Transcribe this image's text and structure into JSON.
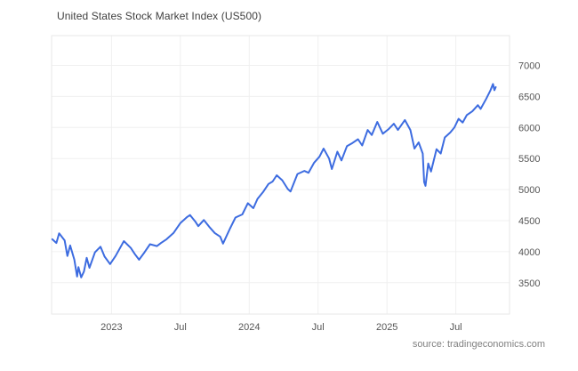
{
  "header": {
    "title": "United States Stock Market Index (US500)"
  },
  "footer": {
    "source": "source: tradingeconomics.com"
  },
  "chart_data": {
    "type": "line",
    "title": "United States Stock Market Index (US500)",
    "xlabel": "",
    "ylabel": "",
    "legend": "none",
    "grid": "on",
    "y_axis_side": "right",
    "line_color": "#3d6ce0",
    "grid_color": "#f0f0f0",
    "border_color": "#e7e7e7",
    "tick_color": "#555555",
    "title_color": "#3f3f3f",
    "source_color": "#808080",
    "xlim": [
      2022.565,
      2025.89
    ],
    "ylim": [
      2995,
      7480
    ],
    "yticks": [
      3500,
      4000,
      4500,
      5000,
      5500,
      6000,
      6500,
      7000
    ],
    "xticks": [
      {
        "v": 2023.0,
        "label": "2023"
      },
      {
        "v": 2023.5,
        "label": "Jul"
      },
      {
        "v": 2024.0,
        "label": "2024"
      },
      {
        "v": 2024.5,
        "label": "Jul"
      },
      {
        "v": 2025.0,
        "label": "2025"
      },
      {
        "v": 2025.5,
        "label": "Jul"
      }
    ],
    "series": [
      {
        "name": "US500",
        "points": [
          [
            2022.57,
            4200
          ],
          [
            2022.6,
            4140
          ],
          [
            2022.62,
            4295
          ],
          [
            2022.66,
            4180
          ],
          [
            2022.68,
            3930
          ],
          [
            2022.7,
            4100
          ],
          [
            2022.73,
            3870
          ],
          [
            2022.75,
            3600
          ],
          [
            2022.76,
            3750
          ],
          [
            2022.78,
            3585
          ],
          [
            2022.8,
            3680
          ],
          [
            2022.82,
            3900
          ],
          [
            2022.84,
            3740
          ],
          [
            2022.88,
            3990
          ],
          [
            2022.92,
            4080
          ],
          [
            2022.95,
            3920
          ],
          [
            2022.99,
            3800
          ],
          [
            2023.03,
            3930
          ],
          [
            2023.09,
            4170
          ],
          [
            2023.14,
            4060
          ],
          [
            2023.17,
            3960
          ],
          [
            2023.2,
            3870
          ],
          [
            2023.24,
            3990
          ],
          [
            2023.28,
            4120
          ],
          [
            2023.33,
            4090
          ],
          [
            2023.36,
            4140
          ],
          [
            2023.4,
            4200
          ],
          [
            2023.45,
            4300
          ],
          [
            2023.5,
            4460
          ],
          [
            2023.55,
            4560
          ],
          [
            2023.57,
            4590
          ],
          [
            2023.61,
            4480
          ],
          [
            2023.63,
            4410
          ],
          [
            2023.67,
            4510
          ],
          [
            2023.71,
            4400
          ],
          [
            2023.75,
            4300
          ],
          [
            2023.79,
            4240
          ],
          [
            2023.81,
            4130
          ],
          [
            2023.86,
            4370
          ],
          [
            2023.9,
            4550
          ],
          [
            2023.95,
            4600
          ],
          [
            2023.99,
            4780
          ],
          [
            2024.03,
            4700
          ],
          [
            2024.06,
            4850
          ],
          [
            2024.1,
            4960
          ],
          [
            2024.14,
            5090
          ],
          [
            2024.17,
            5130
          ],
          [
            2024.2,
            5230
          ],
          [
            2024.24,
            5150
          ],
          [
            2024.28,
            5010
          ],
          [
            2024.3,
            4970
          ],
          [
            2024.35,
            5250
          ],
          [
            2024.4,
            5300
          ],
          [
            2024.43,
            5270
          ],
          [
            2024.47,
            5430
          ],
          [
            2024.51,
            5530
          ],
          [
            2024.54,
            5660
          ],
          [
            2024.58,
            5500
          ],
          [
            2024.6,
            5330
          ],
          [
            2024.64,
            5610
          ],
          [
            2024.67,
            5470
          ],
          [
            2024.71,
            5700
          ],
          [
            2024.75,
            5750
          ],
          [
            2024.79,
            5810
          ],
          [
            2024.82,
            5710
          ],
          [
            2024.86,
            5960
          ],
          [
            2024.89,
            5880
          ],
          [
            2024.93,
            6090
          ],
          [
            2024.97,
            5900
          ],
          [
            2025.01,
            5970
          ],
          [
            2025.05,
            6060
          ],
          [
            2025.08,
            5960
          ],
          [
            2025.13,
            6120
          ],
          [
            2025.17,
            5960
          ],
          [
            2025.2,
            5660
          ],
          [
            2025.23,
            5760
          ],
          [
            2025.26,
            5580
          ],
          [
            2025.27,
            5120
          ],
          [
            2025.28,
            5060
          ],
          [
            2025.3,
            5420
          ],
          [
            2025.32,
            5290
          ],
          [
            2025.36,
            5650
          ],
          [
            2025.39,
            5580
          ],
          [
            2025.42,
            5840
          ],
          [
            2025.46,
            5920
          ],
          [
            2025.49,
            6000
          ],
          [
            2025.52,
            6140
          ],
          [
            2025.55,
            6080
          ],
          [
            2025.58,
            6200
          ],
          [
            2025.62,
            6260
          ],
          [
            2025.66,
            6360
          ],
          [
            2025.68,
            6300
          ],
          [
            2025.72,
            6460
          ],
          [
            2025.75,
            6590
          ],
          [
            2025.77,
            6700
          ],
          [
            2025.78,
            6600
          ],
          [
            2025.79,
            6650
          ]
        ]
      }
    ]
  }
}
